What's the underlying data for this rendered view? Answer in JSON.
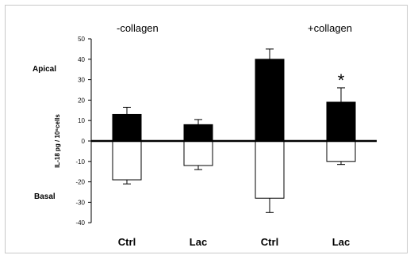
{
  "chart_data": {
    "type": "bar",
    "categories": [
      "Ctrl",
      "Lac",
      "Ctrl",
      "Lac"
    ],
    "series": [
      {
        "name": "Apical",
        "values": [
          13,
          8,
          40,
          19
        ],
        "errors": [
          3.5,
          2.5,
          5,
          7
        ],
        "color": "#000000"
      },
      {
        "name": "Basal",
        "values": [
          -19,
          -12,
          -28,
          -10
        ],
        "errors": [
          2,
          2,
          7,
          1.5
        ],
        "color": "#ffffff"
      }
    ],
    "ylabel": "IL-18 pg / 10⁶cells",
    "ylim": [
      -40,
      50
    ],
    "yticks": [
      50,
      40,
      30,
      20,
      10,
      0,
      -10,
      -20,
      -30,
      -40
    ],
    "side_labels": {
      "top": "Apical",
      "bottom": "Basal"
    },
    "group_labels": [
      "-collagen",
      "+collagen"
    ],
    "significance": {
      "category_index": 3,
      "series": "Apical",
      "marker": "*"
    },
    "grid": false,
    "legend": "none"
  }
}
